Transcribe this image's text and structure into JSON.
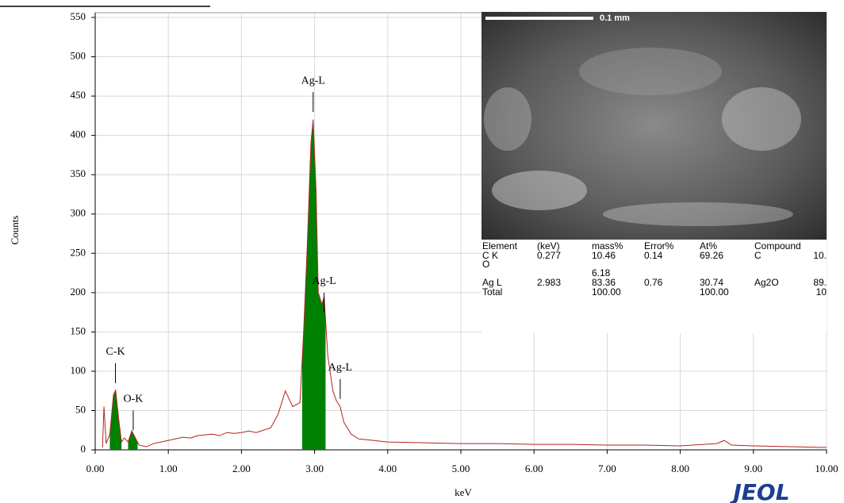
{
  "chart_data": {
    "type": "line",
    "xlabel": "keV",
    "ylabel": "Counts",
    "x": [
      0.1,
      0.12,
      0.15,
      0.2,
      0.25,
      0.28,
      0.32,
      0.36,
      0.4,
      0.45,
      0.5,
      0.55,
      0.6,
      0.7,
      0.8,
      0.9,
      1.0,
      1.1,
      1.2,
      1.3,
      1.4,
      1.5,
      1.6,
      1.7,
      1.8,
      1.9,
      2.0,
      2.1,
      2.2,
      2.3,
      2.4,
      2.5,
      2.6,
      2.7,
      2.8,
      2.85,
      2.9,
      2.95,
      2.98,
      3.02,
      3.05,
      3.1,
      3.13,
      3.18,
      3.25,
      3.3,
      3.35,
      3.4,
      3.5,
      3.6,
      3.8,
      4.0,
      4.5,
      5.0,
      5.5,
      6.0,
      6.5,
      7.0,
      7.5,
      8.0,
      8.5,
      8.6,
      8.7,
      9.0,
      9.5,
      10.0
    ],
    "values": [
      3,
      55,
      8,
      20,
      70,
      76,
      40,
      10,
      15,
      10,
      24,
      15,
      6,
      4,
      8,
      10,
      12,
      14,
      16,
      15,
      18,
      19,
      20,
      18,
      22,
      21,
      22,
      24,
      22,
      25,
      28,
      45,
      75,
      55,
      60,
      150,
      260,
      390,
      420,
      330,
      200,
      185,
      195,
      120,
      75,
      62,
      55,
      35,
      20,
      14,
      12,
      10,
      9,
      8,
      8,
      7,
      7,
      6,
      6,
      5,
      8,
      12,
      6,
      5,
      4,
      3
    ],
    "color": "#b22222",
    "highlight_ranges": [
      [
        0.2,
        0.36
      ],
      [
        0.45,
        0.58
      ],
      [
        2.83,
        3.15
      ]
    ],
    "highlight_color": "#008000",
    "annotations": [
      {
        "text": "Ag-L",
        "x": 2.98,
        "y": 455
      },
      {
        "text": "Ag-L",
        "x": 3.13,
        "y": 200
      },
      {
        "text": "Ag-L",
        "x": 3.35,
        "y": 90
      },
      {
        "text": "C-K",
        "x": 0.277,
        "y": 110
      },
      {
        "text": "O-K",
        "x": 0.52,
        "y": 50
      }
    ],
    "xlim": [
      0,
      10
    ],
    "ylim": [
      0,
      550
    ],
    "xticks": [
      {
        "value": 0,
        "label": "0.00"
      },
      {
        "value": 1,
        "label": "1.00"
      },
      {
        "value": 2,
        "label": "2.00"
      },
      {
        "value": 3,
        "label": "3.00"
      },
      {
        "value": 4,
        "label": "4.00"
      },
      {
        "value": 5,
        "label": "5.00"
      },
      {
        "value": 6,
        "label": "6.00"
      },
      {
        "value": 7,
        "label": "7.00"
      },
      {
        "value": 8,
        "label": "8.00"
      },
      {
        "value": 9,
        "label": "9.00"
      },
      {
        "value": 10,
        "label": "10.00"
      }
    ],
    "yticks": [
      0,
      50,
      100,
      150,
      200,
      250,
      300,
      350,
      400,
      450,
      500,
      550
    ],
    "grid": true
  },
  "inset": {
    "scale_label": "0.1 mm"
  },
  "table": {
    "header": [
      "Element",
      "(keV)",
      "mass%",
      "Error%",
      "At%",
      "Compound",
      null
    ],
    "rows": [
      [
        "C  K",
        "0.277",
        "10.46",
        "0.14",
        "69.26",
        "C",
        "10."
      ],
      [
        "O",
        null,
        null,
        null,
        null,
        null,
        null
      ],
      [
        null,
        null,
        "6.18",
        null,
        null,
        null,
        null
      ],
      [
        "Ag L",
        "2.983",
        "83.36",
        "0.76",
        "30.74",
        "Ag2O",
        "89."
      ],
      [
        "Total",
        null,
        "100.00",
        null,
        "100.00",
        null,
        "10"
      ]
    ]
  },
  "logo": "JEOL"
}
